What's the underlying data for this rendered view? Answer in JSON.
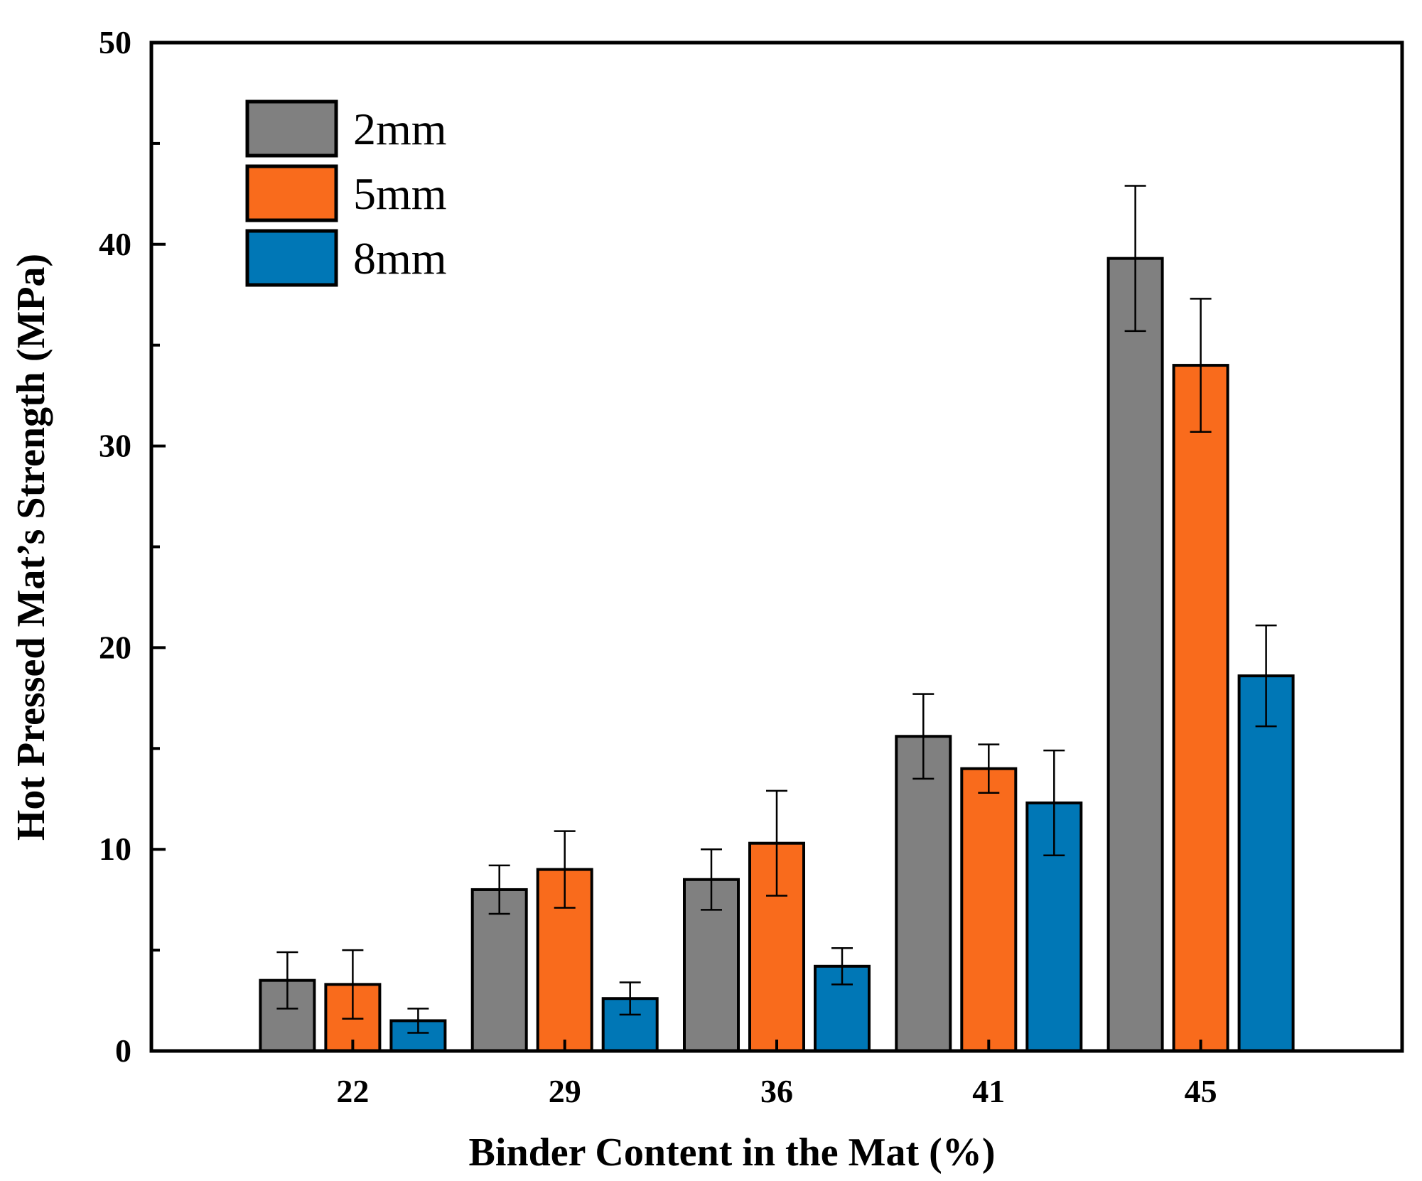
{
  "chart_data": {
    "type": "bar",
    "title": "",
    "xlabel": "Binder Content in the Mat (%)",
    "ylabel": "Hot Pressed Mat’s Strength (MPa)",
    "ylim": [
      0,
      50
    ],
    "yticks": [
      0,
      10,
      20,
      30,
      40,
      50
    ],
    "categories": [
      "22",
      "29",
      "36",
      "41",
      "45"
    ],
    "legend_position": "top-left",
    "series": [
      {
        "name": "2mm",
        "color": "#808080",
        "values": [
          3.5,
          8.0,
          8.5,
          15.6,
          39.3
        ],
        "errors": [
          1.4,
          1.2,
          1.5,
          2.1,
          3.6
        ]
      },
      {
        "name": "5mm",
        "color": "#F96B1C",
        "values": [
          3.3,
          9.0,
          10.3,
          14.0,
          34.0
        ],
        "errors": [
          1.7,
          1.9,
          2.6,
          1.2,
          3.3
        ]
      },
      {
        "name": "8mm",
        "color": "#0077B6",
        "values": [
          1.5,
          2.6,
          4.2,
          12.3,
          18.6
        ],
        "errors": [
          0.6,
          0.8,
          0.9,
          2.6,
          2.5
        ]
      }
    ]
  }
}
